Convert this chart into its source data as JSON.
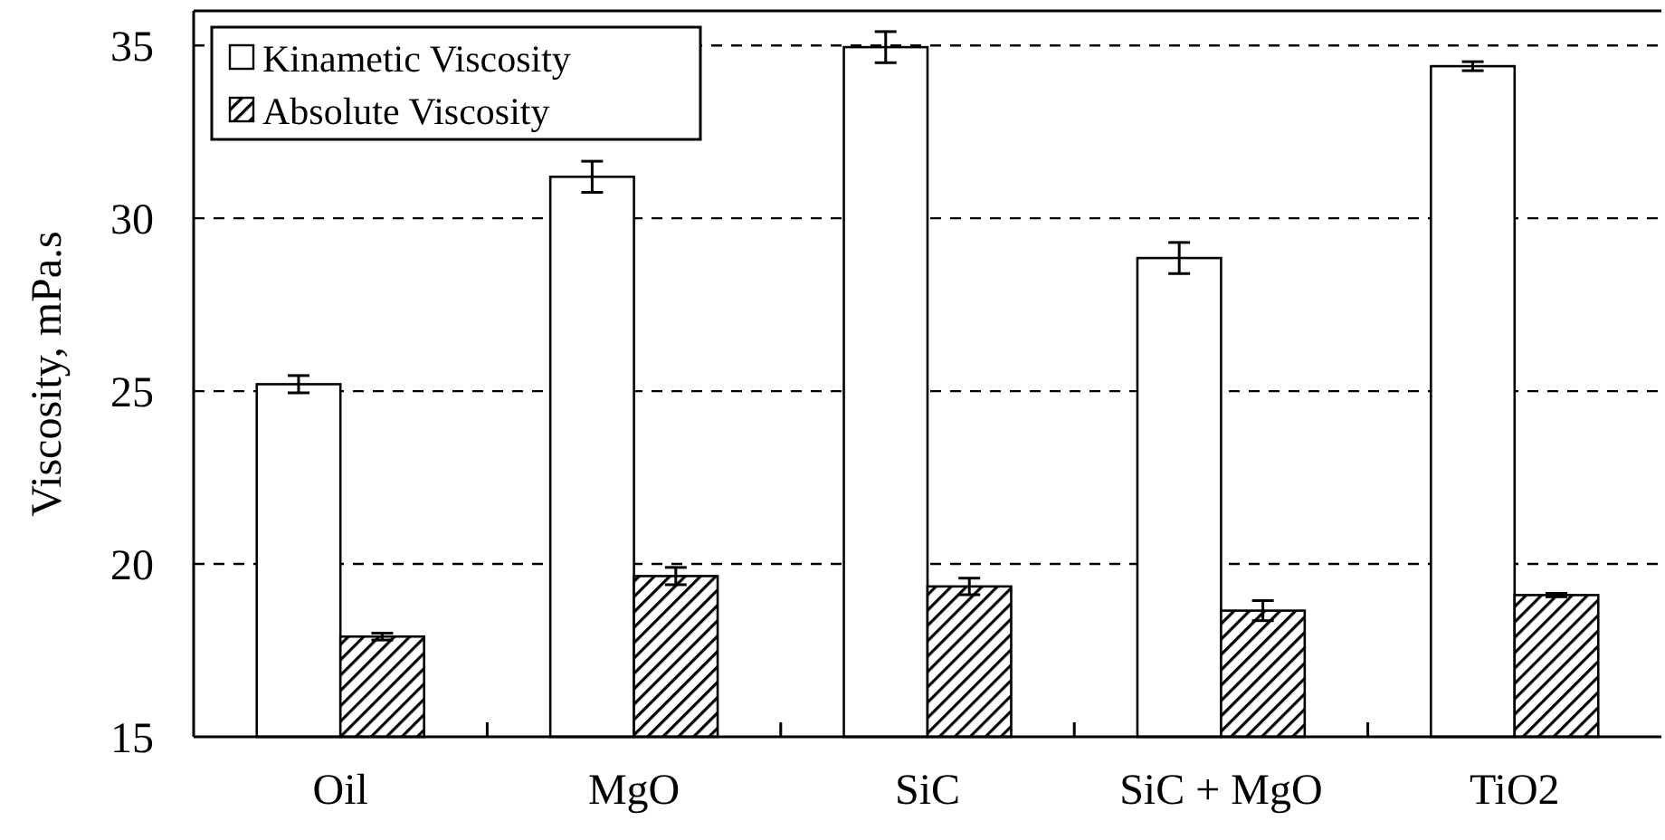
{
  "chart_data": {
    "type": "bar",
    "ylabel": "Viscosity, mPa.s",
    "categories": [
      "Oil",
      "MgO",
      "SiC",
      "SiC + MgO",
      "TiO2"
    ],
    "series": [
      {
        "name": "Kinametic Viscosity",
        "color": "#ffffff",
        "values": [
          25.2,
          31.2,
          34.95,
          28.85,
          34.4
        ],
        "errors": [
          0.25,
          0.45,
          0.45,
          0.45,
          0.13
        ]
      },
      {
        "name": "Absolute Viscosity",
        "color": "#000000",
        "values": [
          17.9,
          19.65,
          19.35,
          18.65,
          19.1
        ],
        "errors": [
          0.1,
          0.25,
          0.24,
          0.29,
          0.05
        ]
      }
    ],
    "ylim": [
      15,
      36
    ],
    "yticks": [
      15,
      20,
      25,
      30,
      35
    ],
    "grid": "y",
    "legend": "top left"
  }
}
